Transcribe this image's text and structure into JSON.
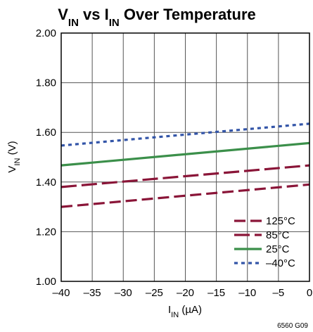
{
  "chart_data": {
    "type": "line",
    "title": {
      "main": "V",
      "main_sub": "IN",
      "mid": " vs I",
      "mid_sub": "IN",
      "rest": " Over Temperature"
    },
    "ylabel": {
      "main": "V",
      "sub": "IN",
      "rest": " (V)"
    },
    "xlabel": {
      "main": "I",
      "sub": "IN",
      "rest": " (µA)"
    },
    "xlim": [
      -40,
      0
    ],
    "ylim": [
      1.0,
      2.0
    ],
    "x_ticks": [
      -40,
      -35,
      -30,
      -25,
      -20,
      -15,
      -10,
      -5,
      0
    ],
    "x_tick_labels": [
      "–40",
      "–35",
      "–30",
      "–25",
      "–20",
      "–15",
      "–10",
      "–5",
      "0"
    ],
    "y_ticks": [
      1.0,
      1.2,
      1.4,
      1.6,
      1.8,
      2.0
    ],
    "y_tick_labels": [
      "1.00",
      "1.20",
      "1.40",
      "1.60",
      "1.80",
      "2.00"
    ],
    "grid": true,
    "legend_position": "bottom-right",
    "series": [
      {
        "name": "125°C",
        "color": "#8a1538",
        "style": "long-dash",
        "x": [
          -40,
          0
        ],
        "y": [
          1.3,
          1.39
        ]
      },
      {
        "name": "85°C",
        "color": "#8a1538",
        "style": "dash",
        "x": [
          -40,
          0
        ],
        "y": [
          1.38,
          1.467
        ]
      },
      {
        "name": "25°C",
        "color": "#3b8f4a",
        "style": "solid",
        "x": [
          -40,
          0
        ],
        "y": [
          1.467,
          1.557
        ]
      },
      {
        "name": "–40°C",
        "color": "#3355a8",
        "style": "dot",
        "x": [
          -40,
          0
        ],
        "y": [
          1.547,
          1.635
        ]
      }
    ],
    "figure_id": "6560 G09"
  }
}
